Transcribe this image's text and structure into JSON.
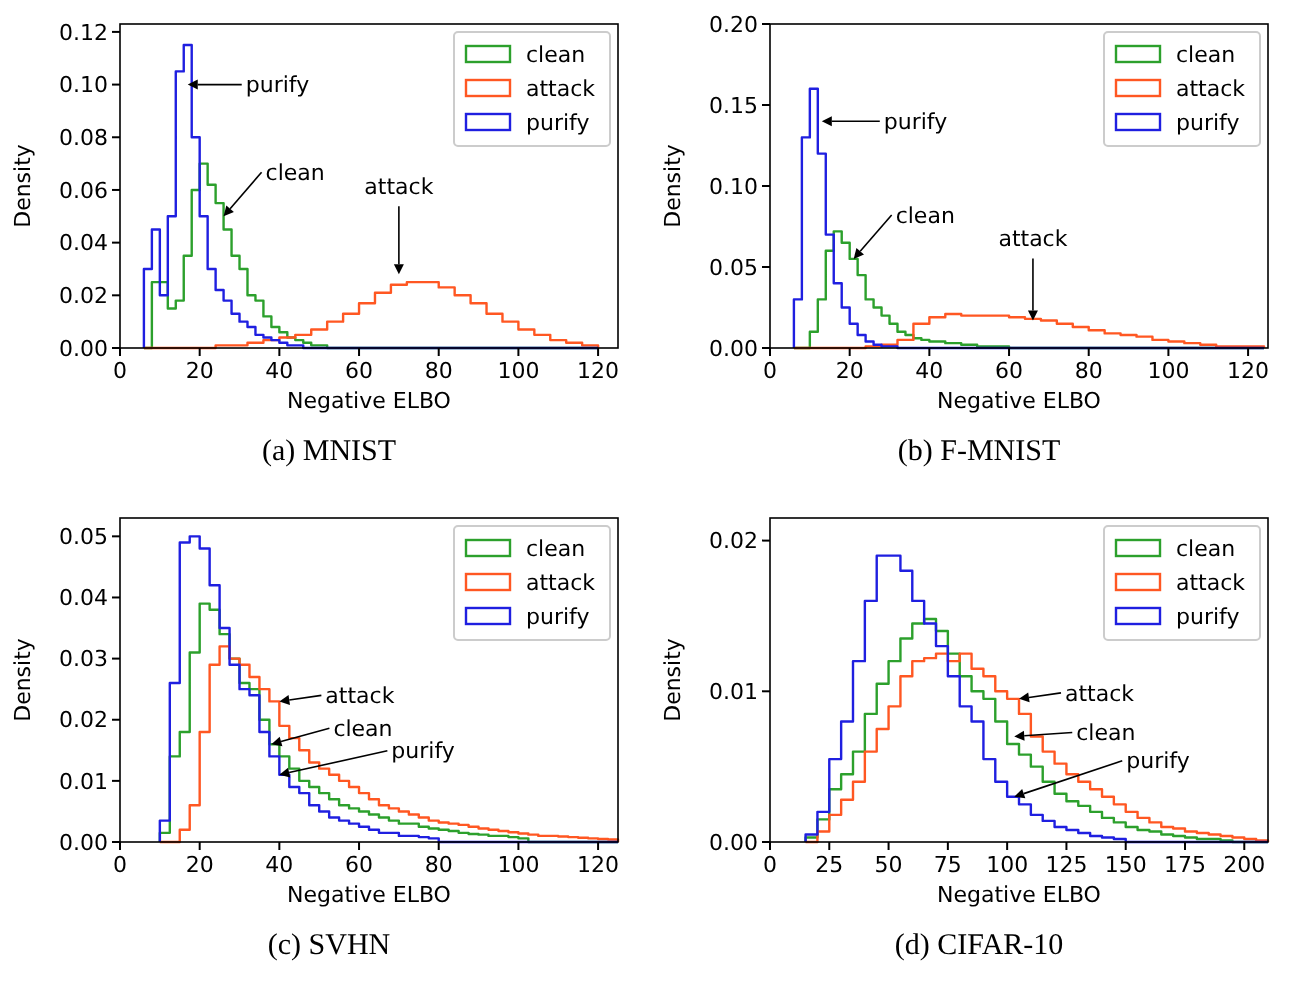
{
  "chart_data": [
    {
      "type": "histogram",
      "title": "(a) MNIST",
      "xlabel": "Negative ELBO",
      "ylabel": "Density",
      "xlim": [
        0,
        125
      ],
      "xticks": [
        0,
        20,
        40,
        60,
        80,
        100,
        120
      ],
      "ylim": [
        0,
        0.123
      ],
      "yticks": [
        {
          "value": 0,
          "label": "0.00"
        },
        {
          "value": 0.02,
          "label": "0.02"
        },
        {
          "value": 0.04,
          "label": "0.04"
        },
        {
          "value": 0.06,
          "label": "0.06"
        },
        {
          "value": 0.08,
          "label": "0.08"
        },
        {
          "value": 0.1,
          "label": "0.10"
        },
        {
          "value": 0.12,
          "label": "0.12"
        }
      ],
      "grid": false,
      "legend": "top right",
      "bins": [
        6,
        8,
        10,
        12,
        14,
        16,
        18,
        20,
        22,
        24,
        26,
        28,
        30,
        32,
        34,
        36,
        38,
        40,
        42,
        44,
        46,
        48,
        50,
        52,
        54,
        56,
        58,
        60,
        62,
        64,
        66,
        68,
        70,
        72,
        74,
        76,
        78,
        80,
        82,
        84,
        86,
        88,
        90,
        92,
        94,
        96,
        98,
        100,
        102,
        104,
        106,
        108,
        110,
        112,
        114,
        116,
        118,
        120
      ],
      "series": [
        {
          "name": "clean",
          "color": "#2ca02c",
          "values": [
            null,
            0.025,
            0.025,
            0.015,
            0.018,
            0.035,
            0.06,
            0.07,
            0.062,
            0.055,
            0.045,
            0.035,
            0.03,
            0.02,
            0.018,
            0.012,
            0.008,
            0.006,
            0.004,
            0.003,
            0.002,
            0.001,
            0.001,
            null,
            null,
            null,
            null,
            null,
            null,
            null,
            null,
            null,
            null,
            null,
            null,
            null,
            null,
            null,
            null,
            null,
            null,
            null,
            null,
            null,
            null,
            null,
            null,
            null,
            null,
            null,
            null,
            null,
            null,
            null,
            null,
            null,
            null
          ]
        },
        {
          "name": "attack",
          "color": "#ff5722",
          "values": [
            null,
            null,
            null,
            null,
            null,
            null,
            null,
            null,
            null,
            0.001,
            0.001,
            0.001,
            0.001,
            0.002,
            0.002,
            0.003,
            0.003,
            0.004,
            0.004,
            0.005,
            0.005,
            0.007,
            0.007,
            0.01,
            0.01,
            0.013,
            0.013,
            0.017,
            0.017,
            0.021,
            0.021,
            0.024,
            0.024,
            0.025,
            0.025,
            0.025,
            0.025,
            0.023,
            0.023,
            0.02,
            0.02,
            0.017,
            0.017,
            0.013,
            0.013,
            0.01,
            0.01,
            0.007,
            0.007,
            0.005,
            0.005,
            0.003,
            0.003,
            0.002,
            0.002,
            0.001,
            0.001
          ]
        },
        {
          "name": "purify",
          "color": "#1f1fe0",
          "values": [
            0.03,
            0.045,
            0.02,
            0.05,
            0.105,
            0.115,
            0.08,
            0.05,
            0.03,
            0.022,
            0.018,
            0.013,
            0.01,
            0.008,
            0.005,
            0.004,
            0.003,
            0.002,
            0.001,
            0.001,
            null,
            null,
            null,
            null,
            null,
            null,
            null,
            null,
            null,
            null,
            null,
            null,
            null,
            null,
            null,
            null,
            null,
            null,
            null,
            null,
            null,
            null,
            null,
            null,
            null,
            null,
            null,
            null,
            null,
            null,
            null,
            null,
            null,
            null,
            null,
            null,
            null
          ]
        }
      ],
      "annotations": [
        {
          "text": "purify",
          "x": 17,
          "y": 0.1
        },
        {
          "text": "clean",
          "x": 26,
          "y": 0.05
        },
        {
          "text": "attack",
          "x": 70,
          "y": 0.028
        }
      ]
    },
    {
      "type": "histogram",
      "title": "(b) F-MNIST",
      "xlabel": "Negative ELBO",
      "ylabel": "Density",
      "xlim": [
        0,
        125
      ],
      "xticks": [
        0,
        20,
        40,
        60,
        80,
        100,
        120
      ],
      "ylim": [
        0,
        0.2
      ],
      "yticks": [
        {
          "value": 0,
          "label": "0.00"
        },
        {
          "value": 0.05,
          "label": "0.05"
        },
        {
          "value": 0.1,
          "label": "0.10"
        },
        {
          "value": 0.15,
          "label": "0.15"
        },
        {
          "value": 0.2,
          "label": "0.20"
        }
      ],
      "grid": false,
      "legend": "top right",
      "bins": [
        6,
        8,
        10,
        12,
        14,
        16,
        18,
        20,
        22,
        24,
        26,
        28,
        30,
        32,
        34,
        36,
        38,
        40,
        42,
        44,
        46,
        48,
        50,
        52,
        54,
        56,
        58,
        60,
        62,
        64,
        66,
        68,
        70,
        72,
        74,
        76,
        78,
        80,
        82,
        84,
        86,
        88,
        90,
        92,
        94,
        96,
        98,
        100,
        102,
        104,
        106,
        108,
        110,
        112,
        114,
        116,
        118,
        120,
        122,
        124
      ],
      "series": [
        {
          "name": "clean",
          "color": "#2ca02c",
          "values": [
            null,
            null,
            0.01,
            0.03,
            0.06,
            0.072,
            0.065,
            0.055,
            0.045,
            0.03,
            0.025,
            0.02,
            0.015,
            0.01,
            0.008,
            0.006,
            0.005,
            0.004,
            0.004,
            0.003,
            0.003,
            0.002,
            0.002,
            0.001,
            0.001,
            0.001,
            0.001,
            null,
            null,
            null,
            null,
            null,
            null,
            null,
            null,
            null,
            null,
            null,
            null,
            null,
            null,
            null,
            null,
            null,
            null,
            null,
            null,
            null,
            null,
            null,
            null,
            null,
            null,
            null,
            null,
            null,
            null,
            null,
            null
          ]
        },
        {
          "name": "attack",
          "color": "#ff5722",
          "values": [
            null,
            null,
            null,
            null,
            null,
            null,
            null,
            null,
            null,
            0.001,
            0.001,
            0.002,
            0.002,
            0.005,
            0.005,
            0.015,
            0.015,
            0.019,
            0.019,
            0.021,
            0.021,
            0.02,
            0.02,
            0.02,
            0.02,
            0.02,
            0.02,
            0.019,
            0.019,
            0.018,
            0.018,
            0.017,
            0.017,
            0.015,
            0.015,
            0.013,
            0.013,
            0.011,
            0.011,
            0.009,
            0.009,
            0.008,
            0.008,
            0.007,
            0.007,
            0.005,
            0.005,
            0.004,
            0.004,
            0.003,
            0.003,
            0.002,
            0.002,
            0.001,
            0.001,
            0.001,
            0.001,
            0.001,
            0.001
          ]
        },
        {
          "name": "purify",
          "color": "#1f1fe0",
          "values": [
            0.03,
            0.13,
            0.16,
            0.12,
            0.07,
            0.04,
            0.025,
            0.015,
            0.008,
            0.004,
            0.002,
            0.001,
            0.001,
            null,
            null,
            null,
            null,
            null,
            null,
            null,
            null,
            null,
            null,
            null,
            null,
            null,
            null,
            null,
            null,
            null,
            null,
            null,
            null,
            null,
            null,
            null,
            null,
            null,
            null,
            null,
            null,
            null,
            null,
            null,
            null,
            null,
            null,
            null,
            null,
            null,
            null,
            null,
            null,
            null,
            null,
            null,
            null,
            null,
            null
          ]
        }
      ],
      "annotations": [
        {
          "text": "purify",
          "x": 13,
          "y": 0.14
        },
        {
          "text": "clean",
          "x": 21,
          "y": 0.055
        },
        {
          "text": "attack",
          "x": 66,
          "y": 0.017
        }
      ]
    },
    {
      "type": "histogram",
      "title": "(c) SVHN",
      "xlabel": "Negative ELBO",
      "ylabel": "Density",
      "xlim": [
        0,
        125
      ],
      "xticks": [
        0,
        20,
        40,
        60,
        80,
        100,
        120
      ],
      "ylim": [
        0,
        0.053
      ],
      "yticks": [
        {
          "value": 0,
          "label": "0.00"
        },
        {
          "value": 0.01,
          "label": "0.01"
        },
        {
          "value": 0.02,
          "label": "0.02"
        },
        {
          "value": 0.03,
          "label": "0.03"
        },
        {
          "value": 0.04,
          "label": "0.04"
        },
        {
          "value": 0.05,
          "label": "0.05"
        }
      ],
      "grid": false,
      "legend": "top right",
      "bins": [
        10,
        12.5,
        15,
        17.5,
        20,
        22.5,
        25,
        27.5,
        30,
        32.5,
        35,
        37.5,
        40,
        42.5,
        45,
        47.5,
        50,
        52.5,
        55,
        57.5,
        60,
        62.5,
        65,
        67.5,
        70,
        72.5,
        75,
        77.5,
        80,
        82.5,
        85,
        87.5,
        90,
        92.5,
        95,
        97.5,
        100,
        102.5,
        105,
        107.5,
        110,
        112.5,
        115,
        117.5,
        120,
        122.5,
        125
      ],
      "series": [
        {
          "name": "clean",
          "color": "#2ca02c",
          "values": [
            0.0015,
            0.014,
            0.018,
            0.031,
            0.039,
            0.038,
            0.034,
            0.03,
            0.026,
            0.025,
            0.02,
            0.016,
            0.014,
            0.012,
            0.01,
            0.009,
            0.008,
            0.007,
            0.006,
            0.0055,
            0.005,
            0.0045,
            0.004,
            0.0035,
            0.003,
            0.003,
            0.0025,
            0.0022,
            0.002,
            0.0018,
            0.0015,
            0.0013,
            0.0012,
            0.001,
            0.001,
            0.0008,
            0.0006,
            null,
            null,
            null,
            null,
            null,
            null,
            null,
            null,
            null
          ]
        },
        {
          "name": "attack",
          "color": "#ff5722",
          "values": [
            null,
            null,
            0.002,
            0.006,
            0.018,
            0.029,
            0.032,
            0.03,
            0.029,
            0.027,
            0.025,
            0.023,
            0.019,
            0.017,
            0.015,
            0.013,
            0.012,
            0.011,
            0.01,
            0.009,
            0.008,
            0.007,
            0.006,
            0.0055,
            0.005,
            0.0045,
            0.004,
            0.0035,
            0.0032,
            0.003,
            0.0028,
            0.0025,
            0.0022,
            0.002,
            0.0018,
            0.0016,
            0.0014,
            0.0012,
            0.001,
            0.001,
            0.0009,
            0.0008,
            0.0007,
            0.0006,
            0.0005,
            0.0004
          ]
        },
        {
          "name": "purify",
          "color": "#1f1fe0",
          "values": [
            0.0035,
            0.026,
            0.049,
            0.05,
            0.048,
            0.042,
            0.035,
            0.029,
            0.025,
            0.024,
            0.018,
            0.014,
            0.011,
            0.009,
            0.008,
            0.006,
            0.005,
            0.004,
            0.0035,
            0.003,
            0.0025,
            0.002,
            0.0015,
            0.0015,
            0.001,
            0.001,
            0.0008,
            0.0006,
            null,
            null,
            null,
            null,
            null,
            null,
            null,
            null,
            null,
            null,
            null,
            null,
            null,
            null,
            null,
            null,
            null,
            null
          ]
        }
      ],
      "annotations": [
        {
          "text": "attack",
          "x": 40,
          "y": 0.023
        },
        {
          "text": "clean",
          "x": 38,
          "y": 0.016
        },
        {
          "text": "purify",
          "x": 40,
          "y": 0.011
        }
      ]
    },
    {
      "type": "histogram",
      "title": "(d) CIFAR-10",
      "xlabel": "Negative ELBO",
      "ylabel": "Density",
      "xlim": [
        0,
        210
      ],
      "xticks": [
        0,
        25,
        50,
        75,
        100,
        125,
        150,
        175,
        200
      ],
      "ylim": [
        0,
        0.0215
      ],
      "yticks": [
        {
          "value": 0,
          "label": "0.00"
        },
        {
          "value": 0.01,
          "label": "0.01"
        },
        {
          "value": 0.02,
          "label": "0.02"
        }
      ],
      "grid": false,
      "legend": "top right",
      "bins": [
        15,
        20,
        25,
        30,
        35,
        40,
        45,
        50,
        55,
        60,
        65,
        70,
        75,
        80,
        85,
        90,
        95,
        100,
        105,
        110,
        115,
        120,
        125,
        130,
        135,
        140,
        145,
        150,
        155,
        160,
        165,
        170,
        175,
        180,
        185,
        190,
        195,
        200,
        205,
        210
      ],
      "series": [
        {
          "name": "clean",
          "color": "#2ca02c",
          "values": [
            0.0003,
            0.0015,
            0.0035,
            0.0045,
            0.006,
            0.0085,
            0.0105,
            0.012,
            0.0135,
            0.0145,
            0.0148,
            0.014,
            0.0125,
            0.011,
            0.01,
            0.0095,
            0.008,
            0.0065,
            0.0058,
            0.005,
            0.004,
            0.0032,
            0.0027,
            0.0024,
            0.002,
            0.0016,
            0.0013,
            0.001,
            0.0008,
            0.0007,
            0.0005,
            0.0004,
            0.0003,
            0.0002,
            0.0002,
            0.0001,
            null,
            null,
            null
          ]
        },
        {
          "name": "attack",
          "color": "#ff5722",
          "values": [
            null,
            0.0007,
            0.0018,
            0.0028,
            0.004,
            0.006,
            0.0075,
            0.009,
            0.011,
            0.012,
            0.0122,
            0.0125,
            0.012,
            0.0125,
            0.0115,
            0.011,
            0.01,
            0.0095,
            0.0085,
            0.007,
            0.006,
            0.0052,
            0.0045,
            0.004,
            0.0035,
            0.003,
            0.0025,
            0.002,
            0.0016,
            0.0013,
            0.001,
            0.0009,
            0.0007,
            0.0006,
            0.0005,
            0.0004,
            0.0003,
            0.0002,
            0.0001
          ]
        },
        {
          "name": "purify",
          "color": "#1f1fe0",
          "values": [
            0.0005,
            0.002,
            0.0055,
            0.008,
            0.012,
            0.016,
            0.019,
            0.019,
            0.018,
            0.016,
            0.0145,
            0.013,
            0.011,
            0.009,
            0.008,
            0.0055,
            0.004,
            0.003,
            0.0025,
            0.0018,
            0.0014,
            0.001,
            0.0008,
            0.0006,
            0.0004,
            0.0003,
            0.0002,
            null,
            null,
            null,
            null,
            null,
            null,
            null,
            null,
            null,
            null,
            null,
            null
          ]
        }
      ],
      "annotations": [
        {
          "text": "attack",
          "x": 105,
          "y": 0.0095
        },
        {
          "text": "clean",
          "x": 103,
          "y": 0.007
        },
        {
          "text": "purify",
          "x": 103,
          "y": 0.003
        }
      ]
    }
  ]
}
